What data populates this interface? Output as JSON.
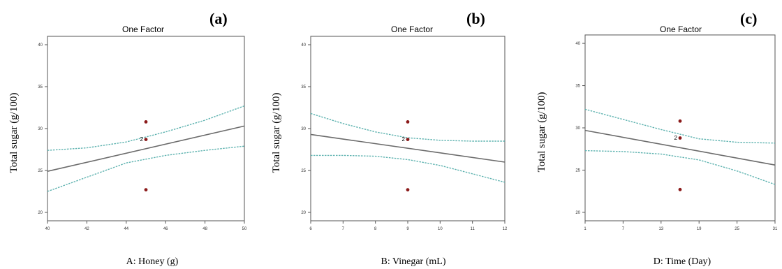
{
  "chart_data": [
    {
      "type": "line",
      "panel_letter": "(a)",
      "title": "One Factor",
      "xlabel": "A: Honey (g)",
      "ylabel": "Total sugar (g/100)",
      "xlim": [
        40,
        50
      ],
      "ylim": [
        19,
        41
      ],
      "xticks": [
        40,
        42,
        44,
        46,
        48,
        50
      ],
      "yticks": [
        20,
        25,
        30,
        35,
        40
      ],
      "fit_line": [
        [
          40,
          24.9
        ],
        [
          50,
          30.3
        ]
      ],
      "ci_upper": [
        [
          40,
          27.4
        ],
        [
          42,
          27.7
        ],
        [
          44,
          28.4
        ],
        [
          46,
          29.6
        ],
        [
          48,
          31.0
        ],
        [
          50,
          32.7
        ]
      ],
      "ci_lower": [
        [
          40,
          22.5
        ],
        [
          42,
          24.2
        ],
        [
          44,
          25.9
        ],
        [
          46,
          26.8
        ],
        [
          48,
          27.4
        ],
        [
          50,
          27.9
        ]
      ],
      "points": [
        {
          "x": 45,
          "y": 30.8,
          "label": ""
        },
        {
          "x": 45,
          "y": 28.7,
          "label": "2"
        },
        {
          "x": 45,
          "y": 22.7,
          "label": ""
        }
      ]
    },
    {
      "type": "line",
      "panel_letter": "(b)",
      "title": "One Factor",
      "xlabel": "B: Vinegar (mL)",
      "ylabel": "Total sugar (g/100)",
      "xlim": [
        6,
        12
      ],
      "ylim": [
        19,
        41
      ],
      "xticks": [
        6,
        7,
        8,
        9,
        10,
        11,
        12
      ],
      "yticks": [
        20,
        25,
        30,
        35,
        40
      ],
      "fit_line": [
        [
          6,
          29.3
        ],
        [
          12,
          26.0
        ]
      ],
      "ci_upper": [
        [
          6,
          31.8
        ],
        [
          7,
          30.6
        ],
        [
          8,
          29.6
        ],
        [
          9,
          28.9
        ],
        [
          10,
          28.6
        ],
        [
          11,
          28.5
        ],
        [
          12,
          28.5
        ]
      ],
      "ci_lower": [
        [
          6,
          26.8
        ],
        [
          7,
          26.8
        ],
        [
          8,
          26.7
        ],
        [
          9,
          26.3
        ],
        [
          10,
          25.6
        ],
        [
          11,
          24.6
        ],
        [
          12,
          23.6
        ]
      ],
      "points": [
        {
          "x": 9,
          "y": 30.8,
          "label": ""
        },
        {
          "x": 9,
          "y": 28.7,
          "label": "2"
        },
        {
          "x": 9,
          "y": 22.7,
          "label": ""
        }
      ]
    },
    {
      "type": "line",
      "panel_letter": "(c)",
      "title": "One Factor",
      "xlabel": "D: Time (Day)",
      "ylabel": "Total sugar (g/100)",
      "xlim": [
        1,
        31
      ],
      "ylim": [
        19,
        41
      ],
      "xticks": [
        1,
        7,
        13,
        19,
        25,
        31
      ],
      "yticks": [
        20,
        25,
        30,
        35,
        40
      ],
      "fit_line": [
        [
          1,
          29.7
        ],
        [
          31,
          25.6
        ]
      ],
      "ci_upper": [
        [
          1,
          32.2
        ],
        [
          7,
          31.0
        ],
        [
          13,
          29.8
        ],
        [
          19,
          28.7
        ],
        [
          25,
          28.3
        ],
        [
          31,
          28.2
        ]
      ],
      "ci_lower": [
        [
          1,
          27.3
        ],
        [
          7,
          27.2
        ],
        [
          13,
          26.9
        ],
        [
          19,
          26.2
        ],
        [
          25,
          24.9
        ],
        [
          31,
          23.3
        ]
      ],
      "points": [
        {
          "x": 16,
          "y": 30.8,
          "label": ""
        },
        {
          "x": 16,
          "y": 28.8,
          "label": "2"
        },
        {
          "x": 16,
          "y": 22.7,
          "label": ""
        }
      ]
    }
  ],
  "colors": {
    "fit_line": "#6b6b6b",
    "ci_band": "#5fb3b0",
    "points": "#8b1a1a",
    "axis": "#555555"
  }
}
